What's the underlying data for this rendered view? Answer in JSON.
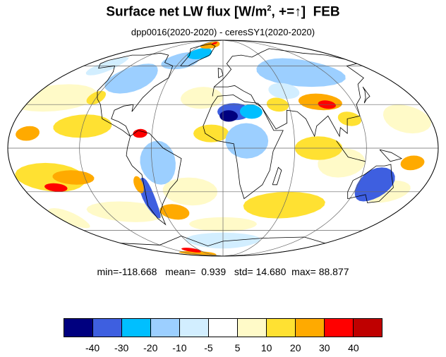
{
  "title": {
    "main": "Surface net LW flux [W/m",
    "sup": "2",
    "tail": ", +=",
    "arrow": "↑",
    "close": "]",
    "month": "FEB"
  },
  "subtitle": "dpp0016(2020-2020) - ceresSY1(2020-2020)",
  "stats": {
    "min_label": "min=",
    "min": "-118.668",
    "mean_label": "mean=",
    "mean": "0.939",
    "std_label": "std=",
    "std": "14.680",
    "max_label": "max=",
    "max": "88.877"
  },
  "colorbar": {
    "colors": [
      "#00007f",
      "#3e5fe0",
      "#00bfff",
      "#9ccfff",
      "#d2eeff",
      "#ffffff",
      "#fffac8",
      "#ffe132",
      "#ffaa00",
      "#ff0000",
      "#bf0000"
    ],
    "labels": [
      "-40",
      "-30",
      "-20",
      "-10",
      "-5",
      "5",
      "10",
      "20",
      "30",
      "40"
    ]
  },
  "map": {
    "projection": "mollweide",
    "graticule": true,
    "ocean_background": "#ffffff"
  }
}
